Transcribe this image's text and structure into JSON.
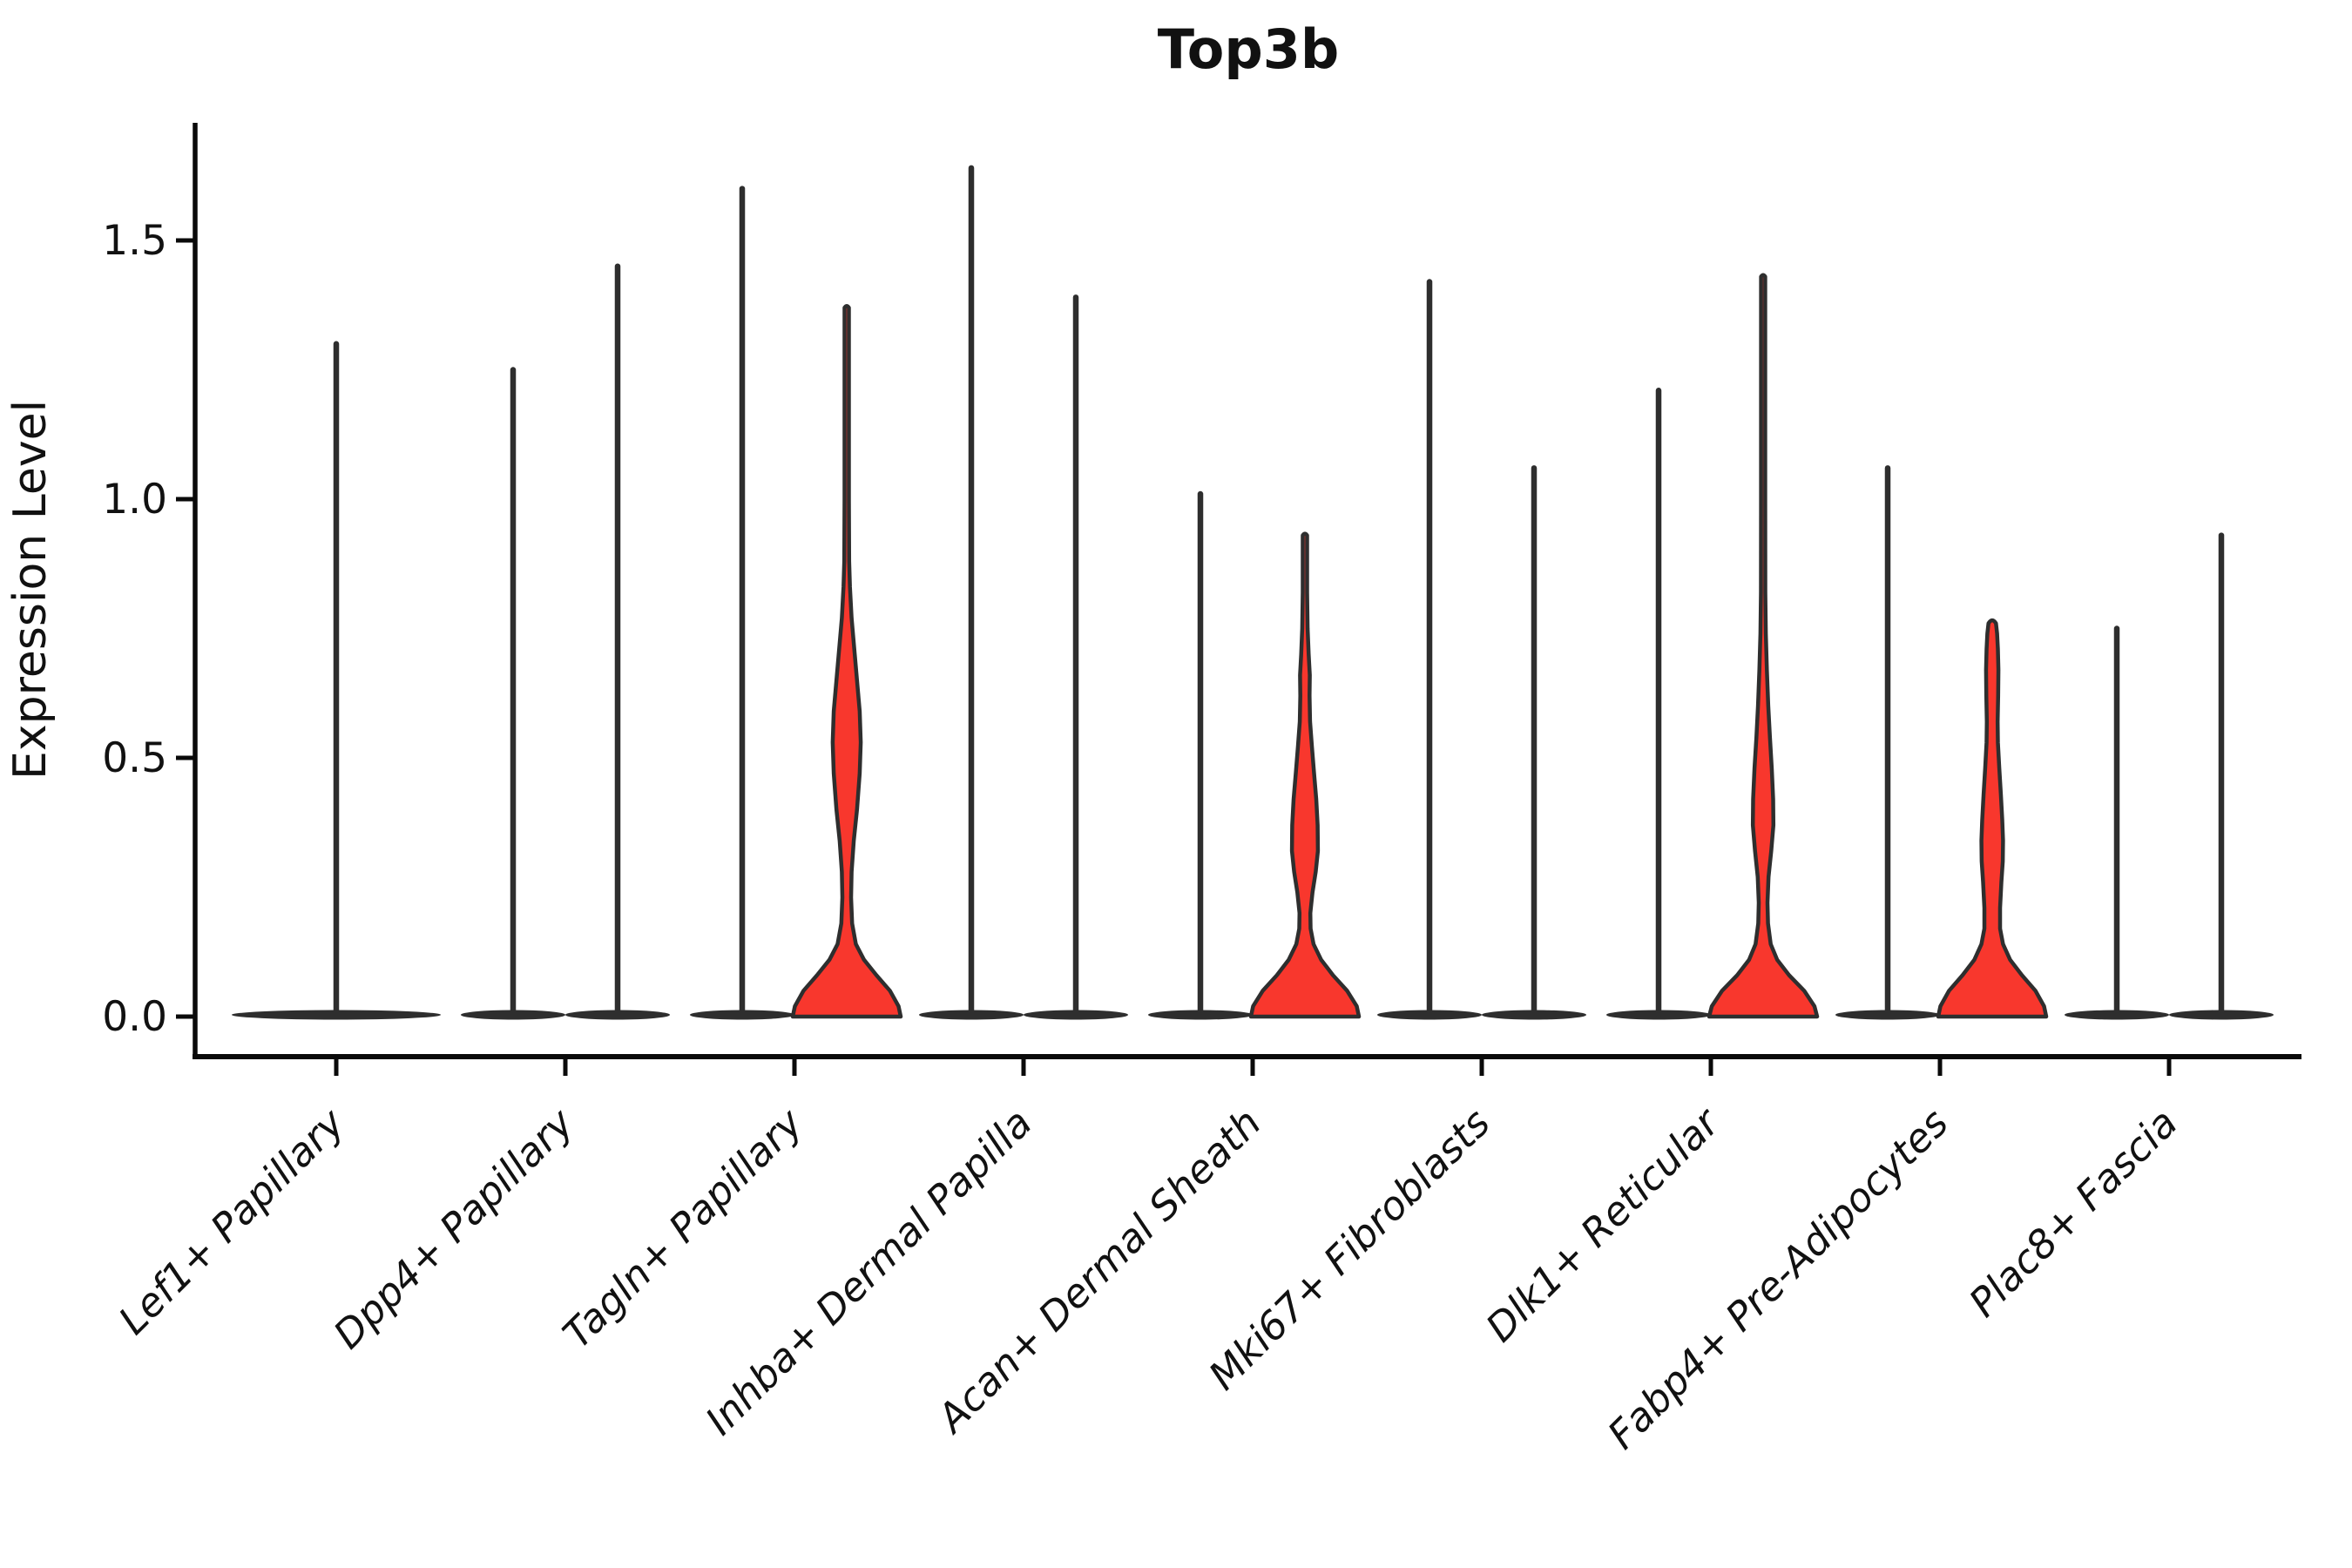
{
  "chart_data": {
    "type": "violin",
    "title": "Top3b",
    "ylabel": "Expression Level",
    "xlabel": "",
    "grid": false,
    "legend": "none",
    "ylim": [
      -0.08,
      1.73
    ],
    "ytick_values": [
      0.0,
      0.5,
      1.0,
      1.5
    ],
    "yticks": [
      "0.0",
      "0.5",
      "1.0",
      "1.5"
    ],
    "categories": [
      "Lef1+ Papillary",
      "Dpp4+ Papillary",
      "Tagln+ Papillary",
      "Inhba+ Dermal Papilla",
      "Acan+ Dermal Sheath",
      "Mki67+ Fibroblasts",
      "Dlk1+ Reticular",
      "Fabp4+ Pre-Adipocytes",
      "Plac8+ Fascia"
    ],
    "colors": {
      "violin_fill": "#f8372d",
      "line_color": "#2e2e2e",
      "spine_color": "#0a0a0a",
      "text_color": "#111111"
    },
    "violins": [
      {
        "category_index": 0,
        "position": "center",
        "kind": "spike",
        "max": 1.3
      },
      {
        "category_index": 1,
        "position": "left",
        "kind": "spike",
        "max": 1.25
      },
      {
        "category_index": 1,
        "position": "right",
        "kind": "spike",
        "max": 1.45
      },
      {
        "category_index": 2,
        "position": "left",
        "kind": "spike",
        "max": 1.6
      },
      {
        "category_index": 2,
        "position": "right",
        "kind": "shaped",
        "max": 1.37,
        "profile": [
          [
            0,
            1.0
          ],
          [
            0.02,
            0.96
          ],
          [
            0.05,
            0.8
          ],
          [
            0.08,
            0.55
          ],
          [
            0.11,
            0.32
          ],
          [
            0.14,
            0.17
          ],
          [
            0.18,
            0.1
          ],
          [
            0.23,
            0.08
          ],
          [
            0.28,
            0.09
          ],
          [
            0.34,
            0.13
          ],
          [
            0.4,
            0.19
          ],
          [
            0.47,
            0.24
          ],
          [
            0.53,
            0.26
          ],
          [
            0.59,
            0.24
          ],
          [
            0.65,
            0.19
          ],
          [
            0.71,
            0.14
          ],
          [
            0.77,
            0.09
          ],
          [
            0.83,
            0.06
          ],
          [
            0.88,
            0.045
          ],
          [
            1.0,
            0.04
          ],
          [
            1.2,
            0.04
          ],
          [
            1.37,
            0.04
          ]
        ]
      },
      {
        "category_index": 3,
        "position": "left",
        "kind": "spike",
        "max": 1.64
      },
      {
        "category_index": 3,
        "position": "right",
        "kind": "spike",
        "max": 1.39
      },
      {
        "category_index": 4,
        "position": "left",
        "kind": "spike",
        "max": 1.01
      },
      {
        "category_index": 4,
        "position": "right",
        "kind": "shaped",
        "max": 0.93,
        "profile": [
          [
            0,
            1.0
          ],
          [
            0.02,
            0.96
          ],
          [
            0.05,
            0.78
          ],
          [
            0.08,
            0.52
          ],
          [
            0.11,
            0.3
          ],
          [
            0.14,
            0.16
          ],
          [
            0.17,
            0.105
          ],
          [
            0.2,
            0.1
          ],
          [
            0.24,
            0.14
          ],
          [
            0.28,
            0.2
          ],
          [
            0.32,
            0.24
          ],
          [
            0.37,
            0.235
          ],
          [
            0.42,
            0.21
          ],
          [
            0.47,
            0.17
          ],
          [
            0.52,
            0.13
          ],
          [
            0.57,
            0.095
          ],
          [
            0.62,
            0.085
          ],
          [
            0.66,
            0.09
          ],
          [
            0.7,
            0.07
          ],
          [
            0.75,
            0.05
          ],
          [
            0.82,
            0.04
          ],
          [
            0.93,
            0.04
          ]
        ]
      },
      {
        "category_index": 5,
        "position": "left",
        "kind": "spike",
        "max": 1.42
      },
      {
        "category_index": 5,
        "position": "right",
        "kind": "spike",
        "max": 1.06
      },
      {
        "category_index": 6,
        "position": "left",
        "kind": "spike",
        "max": 1.21
      },
      {
        "category_index": 6,
        "position": "right",
        "kind": "shaped",
        "max": 1.43,
        "profile": [
          [
            0,
            1.0
          ],
          [
            0.02,
            0.95
          ],
          [
            0.05,
            0.76
          ],
          [
            0.08,
            0.48
          ],
          [
            0.11,
            0.26
          ],
          [
            0.14,
            0.14
          ],
          [
            0.18,
            0.09
          ],
          [
            0.22,
            0.08
          ],
          [
            0.27,
            0.1
          ],
          [
            0.32,
            0.15
          ],
          [
            0.37,
            0.19
          ],
          [
            0.42,
            0.185
          ],
          [
            0.48,
            0.16
          ],
          [
            0.54,
            0.125
          ],
          [
            0.6,
            0.095
          ],
          [
            0.67,
            0.07
          ],
          [
            0.74,
            0.05
          ],
          [
            0.82,
            0.04
          ],
          [
            1.0,
            0.038
          ],
          [
            1.2,
            0.038
          ],
          [
            1.43,
            0.038
          ]
        ]
      },
      {
        "category_index": 7,
        "position": "left",
        "kind": "spike",
        "max": 1.06
      },
      {
        "category_index": 7,
        "position": "right",
        "kind": "shaped",
        "max": 0.76,
        "profile": [
          [
            0,
            1.0
          ],
          [
            0.02,
            0.96
          ],
          [
            0.05,
            0.8
          ],
          [
            0.08,
            0.55
          ],
          [
            0.11,
            0.33
          ],
          [
            0.14,
            0.2
          ],
          [
            0.17,
            0.145
          ],
          [
            0.21,
            0.145
          ],
          [
            0.26,
            0.17
          ],
          [
            0.3,
            0.195
          ],
          [
            0.34,
            0.2
          ],
          [
            0.38,
            0.185
          ],
          [
            0.43,
            0.16
          ],
          [
            0.48,
            0.13
          ],
          [
            0.53,
            0.105
          ],
          [
            0.57,
            0.1
          ],
          [
            0.62,
            0.11
          ],
          [
            0.67,
            0.115
          ],
          [
            0.71,
            0.105
          ],
          [
            0.74,
            0.09
          ],
          [
            0.76,
            0.07
          ]
        ]
      },
      {
        "category_index": 8,
        "position": "left",
        "kind": "spike",
        "max": 0.75
      },
      {
        "category_index": 8,
        "position": "right",
        "kind": "spike",
        "max": 0.93
      }
    ]
  }
}
